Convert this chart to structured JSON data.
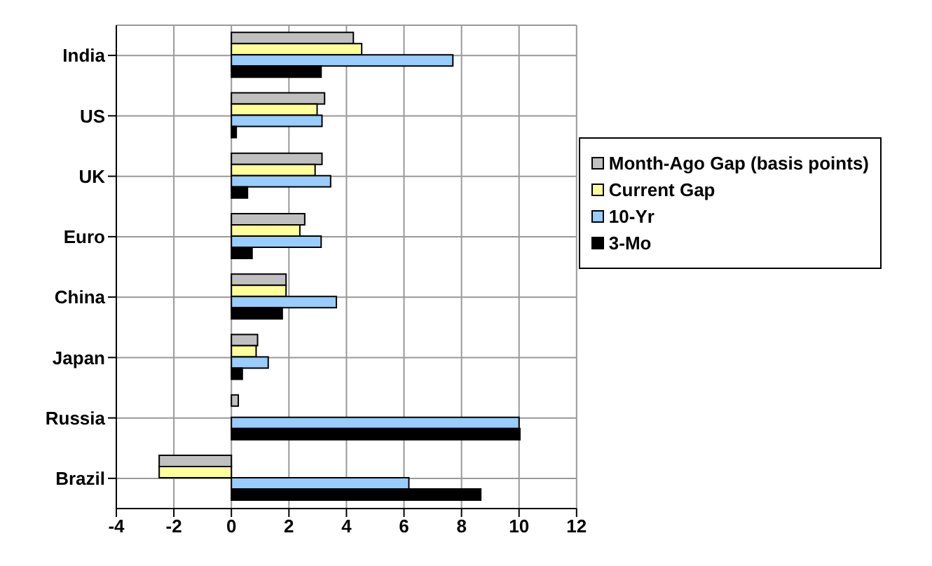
{
  "chart_data": {
    "type": "bar",
    "orientation": "horizontal",
    "categories": [
      "India",
      "US",
      "UK",
      "Euro",
      "China",
      "Japan",
      "Russia",
      "Brazil"
    ],
    "series": [
      {
        "name": "Month-Ago Gap (basis points)",
        "color": "#c0c0c0",
        "values": [
          4.24,
          3.24,
          3.15,
          2.55,
          1.9,
          0.91,
          0.24,
          -2.51
        ]
      },
      {
        "name": "Current Gap",
        "color": "#ffff99",
        "values": [
          4.53,
          2.98,
          2.91,
          2.38,
          1.9,
          0.86,
          null,
          -2.51
        ]
      },
      {
        "name": "10-Yr",
        "color": "#99ccff",
        "values": [
          7.7,
          3.15,
          3.45,
          3.12,
          3.65,
          1.28,
          10.0,
          6.17
        ]
      },
      {
        "name": "3-Mo",
        "color": "#000000",
        "values": [
          3.12,
          0.17,
          0.56,
          0.72,
          1.77,
          0.38,
          10.03,
          8.67
        ]
      }
    ],
    "xlim": [
      -4,
      12
    ],
    "xticks": [
      -4,
      -2,
      0,
      2,
      4,
      6,
      8,
      10,
      12
    ],
    "grid": true,
    "legend": "right"
  }
}
